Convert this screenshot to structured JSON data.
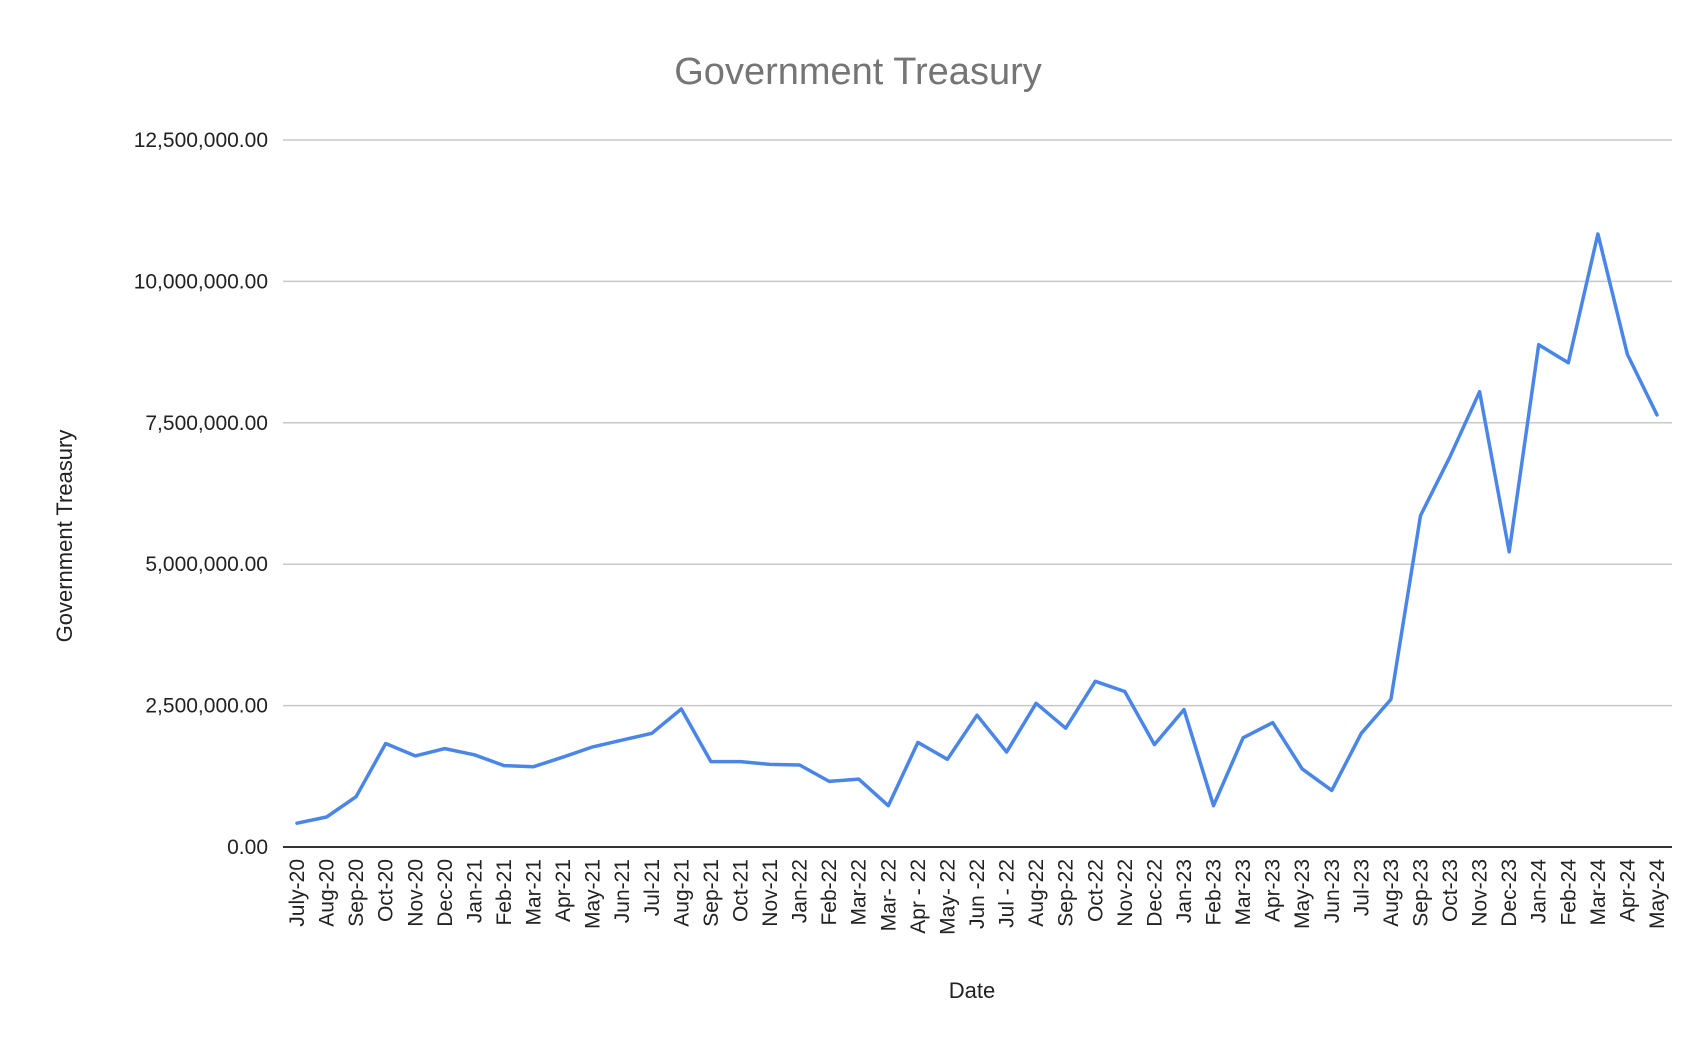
{
  "chart_data": {
    "type": "line",
    "title": "Government Treasury",
    "xlabel": "Date",
    "ylabel": "Government Treasury",
    "ylim": [
      0,
      12500000
    ],
    "yticks": [
      "0.00",
      "2,500,000.00",
      "5,000,000.00",
      "7,500,000.00",
      "10,000,000.00",
      "12,500,000.00"
    ],
    "grid": true,
    "legend": "none",
    "categories": [
      "July-20",
      "Aug-20",
      "Sep-20",
      "Oct-20",
      "Nov-20",
      "Dec-20",
      "Jan-21",
      "Feb-21",
      "Mar-21",
      "Apr-21",
      "May-21",
      "Jun-21",
      "Jul-21",
      "Aug-21",
      "Sep-21",
      "Oct-21",
      "Nov-21",
      "Jan-22",
      "Feb-22",
      "Mar-22",
      "Mar- 22",
      "Apr - 22",
      "May- 22",
      "Jun -22",
      "Jul - 22",
      "Aug-22",
      "Sep-22",
      "Oct-22",
      "Nov-22",
      "Dec-22",
      "Jan-23",
      "Feb-23",
      "Mar-23",
      "Apr-23",
      "May-23",
      "Jun-23",
      "Jul-23",
      "Aug-23",
      "Sep-23",
      "Oct-23",
      "Nov-23",
      "Dec-23",
      "Jan-24",
      "Feb-24",
      "Mar-24",
      "Apr-24",
      "May-24"
    ],
    "series": [
      {
        "color": "#4a86e8",
        "values": [
          420000,
          530000,
          890000,
          1830000,
          1610000,
          1740000,
          1630000,
          1440000,
          1420000,
          1590000,
          1770000,
          1890000,
          2010000,
          2440000,
          1510000,
          1510000,
          1460000,
          1450000,
          1160000,
          1200000,
          730000,
          1850000,
          1550000,
          2330000,
          1680000,
          2540000,
          2100000,
          2930000,
          2750000,
          1810000,
          2430000,
          730000,
          1930000,
          2200000,
          1380000,
          1000000,
          2010000,
          2610000,
          5860000,
          6900000,
          8050000,
          5220000,
          8880000,
          8560000,
          10840000,
          8710000,
          7640000
        ]
      }
    ]
  }
}
